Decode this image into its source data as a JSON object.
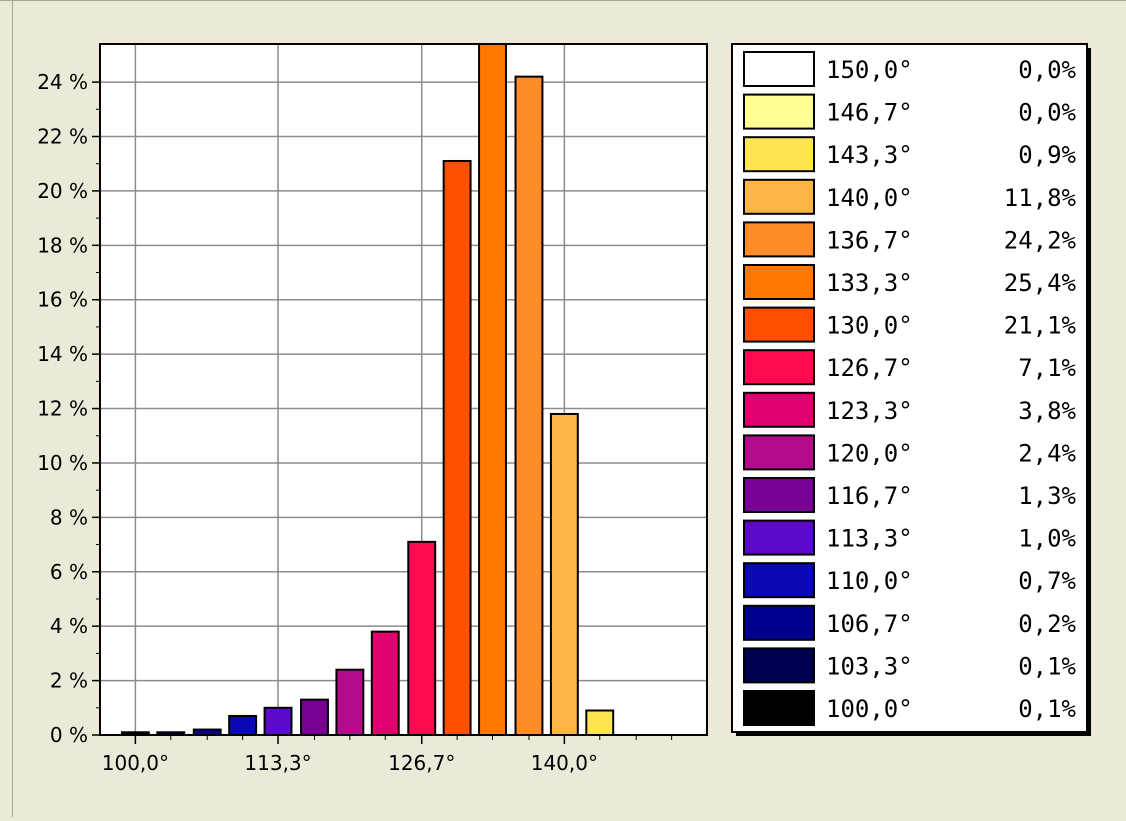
{
  "chart_data": {
    "type": "bar",
    "title": "",
    "xlabel": "",
    "ylabel": "",
    "x_tick_labels": [
      {
        "value": 100.0,
        "label": "100,0°"
      },
      {
        "value": 113.3,
        "label": "113,3°"
      },
      {
        "value": 126.7,
        "label": "126,7°"
      },
      {
        "value": 140.0,
        "label": "140,0°"
      }
    ],
    "y_tick_labels": [
      "0 %",
      "2 %",
      "4 %",
      "6 %",
      "8 %",
      "10 %",
      "12 %",
      "14 %",
      "16 %",
      "18 %",
      "20 %",
      "22 %",
      "24 %"
    ],
    "y_ticks": [
      0,
      2,
      4,
      6,
      8,
      10,
      12,
      14,
      16,
      18,
      20,
      22,
      24
    ],
    "xlim": [
      96.7,
      153.3
    ],
    "ylim": [
      0,
      25.4
    ],
    "grid": true,
    "legend_position": "right",
    "bars": [
      {
        "x": 100.0,
        "value": 0.1,
        "color": "#000000"
      },
      {
        "x": 103.3,
        "value": 0.1,
        "color": "#000050"
      },
      {
        "x": 106.7,
        "value": 0.2,
        "color": "#000090"
      },
      {
        "x": 110.0,
        "value": 0.7,
        "color": "#0a0ab4"
      },
      {
        "x": 113.3,
        "value": 1.0,
        "color": "#5a0ac8"
      },
      {
        "x": 116.7,
        "value": 1.3,
        "color": "#780096"
      },
      {
        "x": 120.0,
        "value": 2.4,
        "color": "#b40a8c"
      },
      {
        "x": 123.3,
        "value": 3.8,
        "color": "#e1006e"
      },
      {
        "x": 126.7,
        "value": 7.1,
        "color": "#ff0a50"
      },
      {
        "x": 130.0,
        "value": 21.1,
        "color": "#ff5000"
      },
      {
        "x": 133.3,
        "value": 25.4,
        "color": "#ff7800"
      },
      {
        "x": 136.7,
        "value": 24.2,
        "color": "#ff8c28"
      },
      {
        "x": 140.0,
        "value": 11.8,
        "color": "#fbb446"
      },
      {
        "x": 143.3,
        "value": 0.9,
        "color": "#ffe650"
      },
      {
        "x": 146.7,
        "value": 0.0,
        "color": "#ffff96"
      },
      {
        "x": 150.0,
        "value": 0.0,
        "color": "#ffffff"
      }
    ],
    "legend": [
      {
        "label": "150,0°",
        "pct": "0,0%",
        "color": "#ffffff"
      },
      {
        "label": "146,7°",
        "pct": "0,0%",
        "color": "#ffff96"
      },
      {
        "label": "143,3°",
        "pct": "0,9%",
        "color": "#ffe650"
      },
      {
        "label": "140,0°",
        "pct": "11,8%",
        "color": "#fbb446"
      },
      {
        "label": "136,7°",
        "pct": "24,2%",
        "color": "#ff8c28"
      },
      {
        "label": "133,3°",
        "pct": "25,4%",
        "color": "#ff7800"
      },
      {
        "label": "130,0°",
        "pct": "21,1%",
        "color": "#ff5000"
      },
      {
        "label": "126,7°",
        "pct": "7,1%",
        "color": "#ff0a50"
      },
      {
        "label": "123,3°",
        "pct": "3,8%",
        "color": "#e1006e"
      },
      {
        "label": "120,0°",
        "pct": "2,4%",
        "color": "#b40a8c"
      },
      {
        "label": "116,7°",
        "pct": "1,3%",
        "color": "#780096"
      },
      {
        "label": "113,3°",
        "pct": "1,0%",
        "color": "#5a0ac8"
      },
      {
        "label": "110,0°",
        "pct": "0,7%",
        "color": "#0a0ab4"
      },
      {
        "label": "106,7°",
        "pct": "0,2%",
        "color": "#000090"
      },
      {
        "label": "103,3°",
        "pct": "0,1%",
        "color": "#000050"
      },
      {
        "label": "100,0°",
        "pct": "0,1%",
        "color": "#000000"
      }
    ]
  }
}
